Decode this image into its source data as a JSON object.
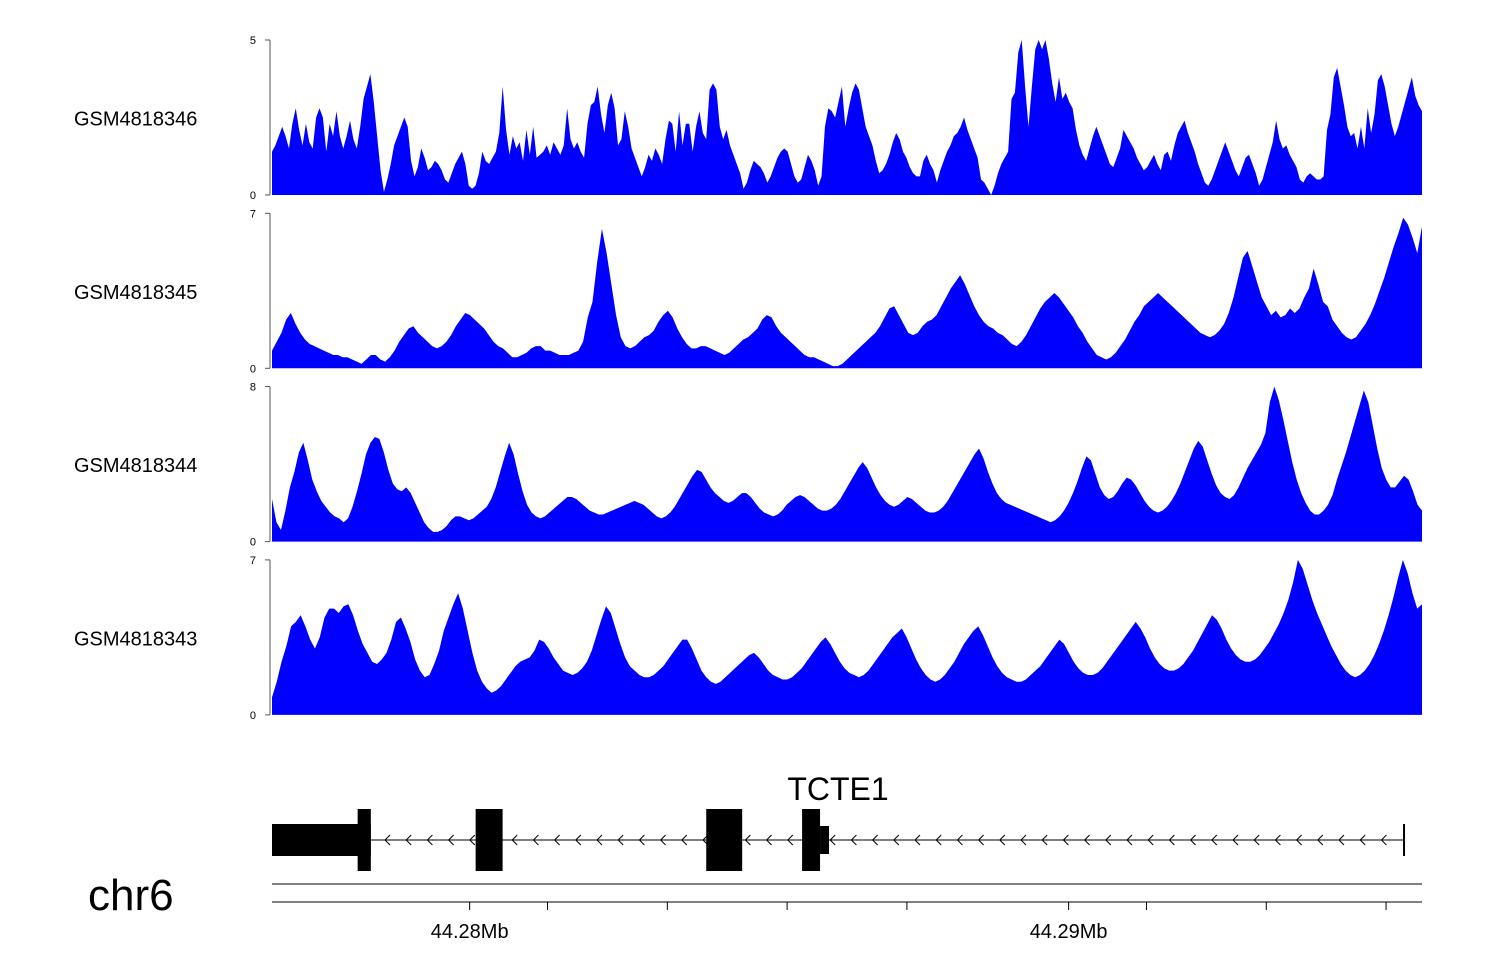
{
  "chart_data": {
    "type": "area",
    "x_range": [
      44.2767,
      44.2959
    ],
    "x_unit": "Mb",
    "chromosome": "chr6",
    "color": "#0000ff",
    "tracks": [
      {
        "name": "GSM4818346",
        "ylim": [
          0,
          5
        ],
        "y_ticks": [
          "0",
          "5"
        ],
        "values": [
          1.4,
          1.6,
          1.9,
          2.2,
          1.9,
          1.5,
          2.3,
          2.8,
          2.1,
          1.6,
          2.3,
          1.7,
          1.5,
          2.5,
          2.8,
          2.5,
          1.4,
          2.3,
          1.9,
          2.7,
          1.9,
          1.5,
          1.9,
          2.4,
          1.8,
          1.5,
          2.2,
          3.1,
          3.5,
          3.9,
          3.0,
          1.9,
          0.8,
          0.1,
          0.5,
          1.0,
          1.6,
          1.9,
          2.2,
          2.5,
          2.2,
          1.1,
          0.6,
          0.9,
          1.5,
          1.2,
          0.8,
          0.9,
          1.1,
          1.0,
          0.8,
          0.5,
          0.4,
          0.7,
          1.0,
          1.2,
          1.4,
          1.0,
          0.3,
          0.2,
          0.3,
          0.7,
          1.4,
          1.1,
          1.0,
          1.2,
          1.4,
          2.0,
          3.5,
          2.1,
          1.3,
          1.9,
          1.5,
          1.7,
          1.1,
          2.1,
          1.3,
          2.2,
          1.2,
          1.3,
          1.4,
          1.6,
          1.3,
          1.7,
          1.5,
          1.3,
          1.6,
          2.8,
          1.8,
          1.5,
          1.7,
          1.4,
          1.2,
          2.3,
          2.9,
          3.0,
          3.5,
          2.6,
          2.0,
          2.9,
          3.3,
          2.8,
          1.6,
          1.8,
          2.7,
          2.2,
          1.5,
          1.2,
          0.9,
          0.6,
          0.9,
          1.3,
          1.1,
          1.5,
          1.3,
          1.0,
          1.8,
          2.4,
          2.3,
          1.4,
          2.7,
          1.6,
          2.3,
          2.3,
          1.4,
          2.2,
          2.7,
          2.0,
          1.8,
          3.4,
          3.6,
          3.4,
          2.2,
          1.8,
          2.1,
          1.6,
          1.3,
          1.0,
          0.7,
          0.2,
          0.4,
          0.8,
          1.1,
          1.0,
          0.9,
          0.7,
          0.4,
          0.6,
          0.9,
          1.2,
          1.4,
          1.5,
          1.4,
          1.0,
          0.6,
          0.4,
          0.5,
          0.9,
          1.3,
          1.1,
          0.8,
          0.3,
          0.6,
          2.2,
          2.8,
          2.7,
          2.5,
          3.0,
          3.5,
          2.2,
          2.8,
          3.3,
          3.6,
          3.4,
          2.8,
          2.2,
          1.9,
          1.6,
          1.1,
          0.7,
          0.8,
          1.0,
          1.3,
          1.7,
          2.0,
          1.8,
          1.4,
          1.2,
          0.9,
          0.7,
          0.6,
          0.6,
          1.1,
          1.3,
          1.0,
          0.8,
          0.4,
          0.8,
          1.1,
          1.4,
          1.6,
          1.9,
          2.0,
          2.2,
          2.5,
          2.1,
          1.8,
          1.5,
          1.2,
          0.5,
          0.4,
          0.2,
          0.0,
          0.3,
          0.7,
          1.0,
          1.2,
          1.4,
          3.1,
          3.3,
          4.6,
          5.0,
          3.5,
          2.2,
          3.5,
          4.7,
          5.0,
          4.7,
          5.0,
          4.4,
          3.6,
          3.0,
          3.8,
          3.1,
          3.3,
          3.0,
          2.8,
          2.1,
          1.6,
          1.3,
          1.1,
          1.5,
          1.9,
          2.2,
          1.9,
          1.6,
          1.3,
          1.0,
          0.9,
          1.2,
          1.5,
          2.1,
          1.9,
          1.7,
          1.5,
          1.2,
          1.0,
          0.8,
          0.9,
          1.1,
          1.3,
          1.0,
          0.8,
          1.3,
          1.4,
          1.1,
          1.6,
          2.0,
          2.2,
          2.4,
          2.0,
          1.7,
          1.4,
          1.0,
          0.7,
          0.4,
          0.3,
          0.5,
          0.8,
          1.1,
          1.4,
          1.7,
          1.4,
          1.1,
          0.8,
          0.6,
          0.9,
          1.2,
          1.3,
          1.0,
          0.7,
          0.3,
          0.5,
          0.9,
          1.3,
          1.7,
          2.4,
          1.8,
          1.5,
          1.6,
          1.3,
          1.1,
          0.9,
          0.5,
          0.4,
          0.6,
          0.7,
          0.6,
          0.5,
          0.5,
          0.6,
          2.1,
          2.6,
          3.8,
          4.1,
          3.5,
          2.9,
          2.2,
          1.9,
          2.0,
          1.5,
          2.2,
          1.5,
          2.8,
          2.0,
          2.6,
          3.7,
          3.9,
          3.5,
          2.9,
          2.3,
          1.9,
          2.2,
          2.6,
          3.0,
          3.4,
          3.8,
          3.2,
          2.9,
          2.7
        ]
      },
      {
        "name": "GSM4818345",
        "ylim": [
          0,
          7
        ],
        "y_ticks": [
          "0",
          "7"
        ],
        "values": [
          0.8,
          1.2,
          1.6,
          2.2,
          2.5,
          2.0,
          1.6,
          1.3,
          1.1,
          1.0,
          0.9,
          0.8,
          0.7,
          0.6,
          0.6,
          0.5,
          0.5,
          0.4,
          0.3,
          0.2,
          0.4,
          0.6,
          0.6,
          0.4,
          0.3,
          0.5,
          0.8,
          1.2,
          1.5,
          1.8,
          1.9,
          1.6,
          1.4,
          1.2,
          1.0,
          0.9,
          1.0,
          1.2,
          1.5,
          1.9,
          2.2,
          2.5,
          2.4,
          2.2,
          2.0,
          1.8,
          1.5,
          1.2,
          1.0,
          0.9,
          0.7,
          0.5,
          0.5,
          0.6,
          0.7,
          0.9,
          1.0,
          1.0,
          0.8,
          0.8,
          0.7,
          0.6,
          0.6,
          0.6,
          0.7,
          0.8,
          1.2,
          2.3,
          3.0,
          4.8,
          6.3,
          5.2,
          3.8,
          2.4,
          1.4,
          1.0,
          0.9,
          1.0,
          1.2,
          1.4,
          1.5,
          1.7,
          2.1,
          2.4,
          2.6,
          2.3,
          1.8,
          1.4,
          1.1,
          0.9,
          0.9,
          1.0,
          1.0,
          0.9,
          0.8,
          0.7,
          0.6,
          0.7,
          0.9,
          1.1,
          1.3,
          1.4,
          1.6,
          1.8,
          2.2,
          2.4,
          2.3,
          1.9,
          1.6,
          1.4,
          1.2,
          1.0,
          0.8,
          0.6,
          0.5,
          0.5,
          0.4,
          0.3,
          0.2,
          0.1,
          0.1,
          0.2,
          0.4,
          0.6,
          0.8,
          1.0,
          1.2,
          1.4,
          1.6,
          1.9,
          2.3,
          2.7,
          2.8,
          2.4,
          2.0,
          1.6,
          1.5,
          1.6,
          1.9,
          2.1,
          2.2,
          2.4,
          2.8,
          3.2,
          3.6,
          3.9,
          4.2,
          3.8,
          3.3,
          2.8,
          2.4,
          2.1,
          1.9,
          1.8,
          1.6,
          1.5,
          1.3,
          1.1,
          1.0,
          1.2,
          1.5,
          1.9,
          2.3,
          2.7,
          3.0,
          3.2,
          3.4,
          3.2,
          2.9,
          2.6,
          2.3,
          1.9,
          1.6,
          1.2,
          0.9,
          0.6,
          0.5,
          0.4,
          0.5,
          0.7,
          1.0,
          1.3,
          1.7,
          2.1,
          2.4,
          2.8,
          3.0,
          3.2,
          3.4,
          3.2,
          3.0,
          2.8,
          2.6,
          2.4,
          2.2,
          2.0,
          1.8,
          1.6,
          1.5,
          1.4,
          1.5,
          1.7,
          2.0,
          2.5,
          3.2,
          4.1,
          5.0,
          5.3,
          4.6,
          3.9,
          3.2,
          2.8,
          2.4,
          2.6,
          2.3,
          2.4,
          2.7,
          2.5,
          2.7,
          3.2,
          3.6,
          4.5,
          3.8,
          3.0,
          2.8,
          2.2,
          1.9,
          1.6,
          1.4,
          1.3,
          1.4,
          1.7,
          2.0,
          2.4,
          2.9,
          3.5,
          4.1,
          4.8,
          5.5,
          6.1,
          6.8,
          6.5,
          5.9,
          5.2,
          6.4
        ]
      },
      {
        "name": "GSM4818344",
        "ylim": [
          0,
          8
        ],
        "y_ticks": [
          "0",
          "8"
        ],
        "values": [
          2.2,
          1.0,
          0.6,
          1.6,
          2.8,
          3.6,
          4.6,
          5.1,
          4.2,
          3.2,
          2.6,
          2.1,
          1.8,
          1.5,
          1.3,
          1.2,
          1.0,
          1.2,
          1.8,
          2.6,
          3.5,
          4.5,
          5.1,
          5.4,
          5.3,
          4.6,
          3.7,
          3.0,
          2.7,
          2.6,
          2.8,
          2.5,
          2.0,
          1.5,
          1.0,
          0.7,
          0.5,
          0.5,
          0.6,
          0.8,
          1.1,
          1.3,
          1.3,
          1.2,
          1.1,
          1.2,
          1.4,
          1.6,
          1.8,
          2.2,
          2.8,
          3.6,
          4.4,
          5.1,
          4.5,
          3.5,
          2.6,
          1.9,
          1.5,
          1.3,
          1.2,
          1.3,
          1.5,
          1.7,
          1.9,
          2.1,
          2.3,
          2.3,
          2.2,
          2.0,
          1.8,
          1.6,
          1.5,
          1.4,
          1.4,
          1.5,
          1.6,
          1.7,
          1.8,
          1.9,
          2.0,
          2.1,
          2.0,
          1.9,
          1.7,
          1.5,
          1.3,
          1.2,
          1.3,
          1.5,
          1.8,
          2.2,
          2.6,
          3.0,
          3.4,
          3.7,
          3.6,
          3.2,
          2.8,
          2.5,
          2.3,
          2.1,
          2.0,
          2.1,
          2.3,
          2.5,
          2.5,
          2.3,
          2.0,
          1.7,
          1.5,
          1.4,
          1.3,
          1.4,
          1.6,
          1.9,
          2.1,
          2.3,
          2.4,
          2.3,
          2.1,
          1.9,
          1.7,
          1.6,
          1.6,
          1.7,
          1.9,
          2.2,
          2.6,
          3.0,
          3.4,
          3.8,
          4.1,
          3.8,
          3.3,
          2.8,
          2.4,
          2.1,
          1.9,
          1.8,
          1.9,
          2.1,
          2.3,
          2.2,
          2.0,
          1.8,
          1.6,
          1.5,
          1.5,
          1.6,
          1.8,
          2.1,
          2.5,
          2.9,
          3.3,
          3.7,
          4.1,
          4.5,
          4.8,
          4.3,
          3.6,
          3.0,
          2.5,
          2.2,
          2.0,
          1.9,
          1.8,
          1.7,
          1.6,
          1.5,
          1.4,
          1.3,
          1.2,
          1.1,
          1.0,
          1.1,
          1.3,
          1.6,
          2.0,
          2.5,
          3.1,
          3.8,
          4.4,
          4.2,
          3.5,
          2.8,
          2.4,
          2.2,
          2.3,
          2.6,
          3.0,
          3.3,
          3.2,
          2.9,
          2.5,
          2.1,
          1.8,
          1.6,
          1.5,
          1.6,
          1.8,
          2.1,
          2.5,
          3.0,
          3.6,
          4.2,
          4.8,
          5.2,
          4.9,
          4.2,
          3.5,
          2.9,
          2.5,
          2.3,
          2.2,
          2.4,
          2.8,
          3.3,
          3.8,
          4.2,
          4.6,
          5.0,
          5.6,
          7.2,
          8.0,
          7.3,
          6.3,
          5.2,
          4.1,
          3.2,
          2.5,
          2.0,
          1.6,
          1.4,
          1.4,
          1.6,
          1.9,
          2.4,
          3.2,
          3.9,
          4.6,
          5.4,
          6.2,
          7.0,
          7.8,
          7.2,
          6.0,
          4.8,
          3.8,
          3.2,
          2.8,
          2.8,
          3.1,
          3.4,
          3.2,
          2.6,
          1.9,
          1.6
        ]
      },
      {
        "name": "GSM4818343",
        "ylim": [
          0,
          7
        ],
        "y_ticks": [
          "0",
          "7"
        ],
        "values": [
          0.8,
          1.5,
          2.4,
          3.1,
          4.0,
          4.2,
          4.5,
          4.0,
          3.4,
          3.0,
          3.5,
          4.4,
          4.8,
          4.8,
          4.6,
          4.9,
          5.0,
          4.5,
          3.8,
          3.2,
          2.8,
          2.4,
          2.3,
          2.5,
          2.8,
          3.4,
          4.2,
          4.4,
          3.9,
          3.3,
          2.5,
          2.0,
          1.7,
          1.8,
          2.3,
          2.9,
          3.8,
          4.4,
          5.0,
          5.5,
          4.8,
          3.8,
          2.8,
          2.0,
          1.5,
          1.2,
          1.0,
          1.1,
          1.3,
          1.6,
          1.9,
          2.2,
          2.4,
          2.5,
          2.6,
          2.9,
          3.4,
          3.3,
          3.0,
          2.6,
          2.3,
          2.0,
          1.9,
          1.8,
          1.9,
          2.1,
          2.4,
          2.9,
          3.6,
          4.3,
          4.9,
          4.6,
          3.9,
          3.2,
          2.6,
          2.2,
          2.0,
          1.8,
          1.7,
          1.7,
          1.8,
          2.0,
          2.2,
          2.5,
          2.8,
          3.1,
          3.4,
          3.4,
          3.0,
          2.5,
          2.0,
          1.7,
          1.5,
          1.4,
          1.5,
          1.7,
          1.9,
          2.1,
          2.3,
          2.5,
          2.7,
          2.8,
          2.6,
          2.3,
          2.0,
          1.8,
          1.7,
          1.6,
          1.6,
          1.7,
          1.9,
          2.1,
          2.4,
          2.7,
          3.0,
          3.3,
          3.5,
          3.2,
          2.8,
          2.4,
          2.1,
          1.9,
          1.8,
          1.7,
          1.8,
          2.0,
          2.3,
          2.6,
          2.9,
          3.2,
          3.5,
          3.7,
          3.9,
          3.5,
          3.0,
          2.5,
          2.1,
          1.8,
          1.6,
          1.5,
          1.6,
          1.8,
          2.1,
          2.4,
          2.8,
          3.2,
          3.5,
          3.8,
          4.0,
          3.6,
          3.1,
          2.6,
          2.2,
          1.9,
          1.7,
          1.6,
          1.5,
          1.5,
          1.6,
          1.8,
          2.0,
          2.2,
          2.5,
          2.8,
          3.1,
          3.4,
          3.2,
          2.8,
          2.4,
          2.1,
          1.9,
          1.8,
          1.8,
          1.9,
          2.1,
          2.4,
          2.7,
          3.0,
          3.3,
          3.6,
          3.9,
          4.2,
          3.9,
          3.5,
          3.0,
          2.6,
          2.3,
          2.1,
          2.0,
          2.0,
          2.1,
          2.3,
          2.6,
          2.9,
          3.3,
          3.7,
          4.1,
          4.5,
          4.3,
          3.9,
          3.4,
          3.0,
          2.7,
          2.5,
          2.4,
          2.4,
          2.5,
          2.7,
          3.0,
          3.3,
          3.7,
          4.1,
          4.6,
          5.2,
          6.0,
          7.0,
          6.6,
          5.9,
          5.2,
          4.6,
          4.1,
          3.6,
          3.1,
          2.7,
          2.3,
          2.0,
          1.8,
          1.7,
          1.8,
          2.0,
          2.3,
          2.7,
          3.2,
          3.8,
          4.5,
          5.3,
          6.2,
          7.0,
          6.4,
          5.5,
          4.8,
          5.0
        ]
      }
    ],
    "x_axis": {
      "tick_labels": [
        "44.28Mb",
        "44.29Mb"
      ],
      "labeled_tick_values": [
        44.28,
        44.29
      ],
      "minor_tick_values": [
        44.2813,
        44.2833,
        44.2853,
        44.2873,
        44.2913,
        44.2933,
        44.2953
      ]
    },
    "gene": {
      "name": "TCTE1",
      "strand": "-",
      "tx_start": 44.2767,
      "tx_end": 44.2956,
      "exons": [
        {
          "start": 44.2767,
          "end": 44.27835,
          "height": "utr"
        },
        {
          "start": 44.27813,
          "end": 44.27835,
          "height": "coding"
        },
        {
          "start": 44.2801,
          "end": 44.28055,
          "height": "coding"
        },
        {
          "start": 44.28395,
          "end": 44.28455,
          "height": "coding"
        },
        {
          "start": 44.28555,
          "end": 44.28585,
          "height": "coding"
        },
        {
          "start": 44.28585,
          "end": 44.286,
          "height": "mid"
        }
      ]
    }
  }
}
